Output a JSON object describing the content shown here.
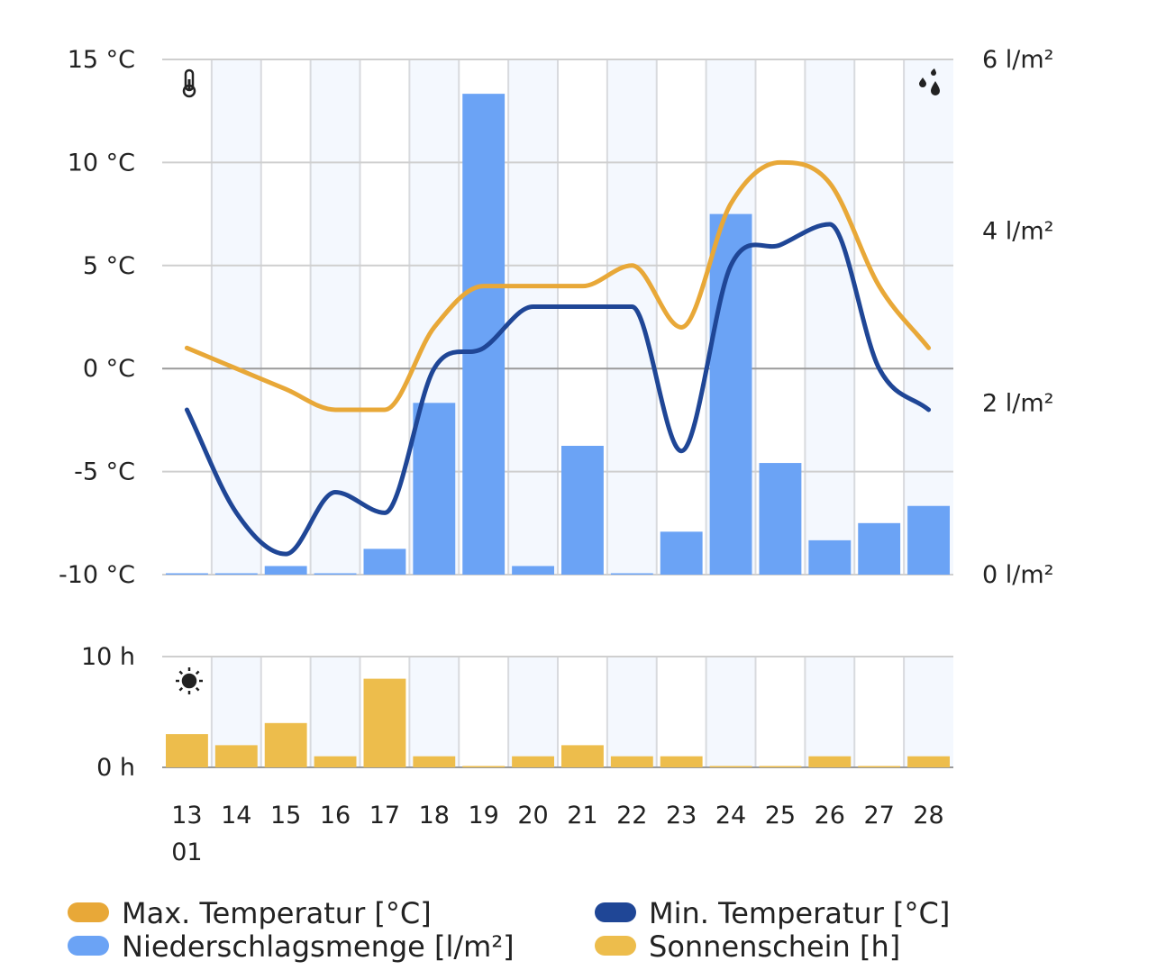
{
  "chart_data": [
    {
      "type": "bar",
      "x": [
        "13",
        "14",
        "15",
        "16",
        "17",
        "18",
        "19",
        "20",
        "21",
        "22",
        "23",
        "24",
        "25",
        "26",
        "27",
        "28"
      ],
      "x_sublabel": "01",
      "y_left": {
        "ticks": [
          "-10 °C",
          "-5 °C",
          "0 °C",
          "5 °C",
          "10 °C",
          "15 °C"
        ],
        "ylim": [
          -10,
          15
        ]
      },
      "y_right": {
        "ticks": [
          "0 l/m²",
          "2 l/m²",
          "4 l/m²",
          "6 l/m²"
        ],
        "ylim": [
          0,
          6
        ]
      },
      "series": [
        {
          "name": "Max.  Temperatur [°C]",
          "kind": "line",
          "axis": "left",
          "color": "#E8A838",
          "values": [
            1,
            0,
            -1,
            -2,
            -2,
            2,
            4,
            4,
            4,
            5,
            2,
            8,
            10,
            9,
            4,
            1
          ]
        },
        {
          "name": "Min.  Temperatur [°C]",
          "kind": "line",
          "axis": "left",
          "color": "#1F4696",
          "values": [
            -2,
            -7,
            -9,
            -6,
            -7,
            0,
            1,
            3,
            3,
            3,
            -4,
            5,
            6,
            7,
            0,
            -2
          ]
        },
        {
          "name": "Niederschlagsmenge [l/m²]",
          "kind": "bar",
          "axis": "right",
          "color": "#6BA3F5",
          "values": [
            0.0,
            0.0,
            0.1,
            0.0,
            0.3,
            2.0,
            5.6,
            0.1,
            1.5,
            0.0,
            0.5,
            4.2,
            1.3,
            0.4,
            0.6,
            0.8
          ]
        }
      ],
      "icons": {
        "left": "thermometer-icon",
        "right": "raindrops-icon"
      },
      "grid": true
    },
    {
      "type": "bar",
      "x": [
        "13",
        "14",
        "15",
        "16",
        "17",
        "18",
        "19",
        "20",
        "21",
        "22",
        "23",
        "24",
        "25",
        "26",
        "27",
        "28"
      ],
      "y_left": {
        "ticks": [
          "0 h",
          "10 h"
        ],
        "ylim": [
          0,
          10
        ]
      },
      "series": [
        {
          "name": "Sonnenschein [h]",
          "kind": "bar",
          "color": "#EDBD4C",
          "values": [
            3,
            2,
            4,
            1,
            8,
            1,
            0,
            1,
            2,
            1,
            1,
            0,
            0,
            1,
            0,
            1
          ]
        }
      ],
      "icons": {
        "left": "sun-icon"
      },
      "grid": true
    }
  ],
  "legend": [
    {
      "label": "Max.  Temperatur [°C]",
      "color": "#E8A838"
    },
    {
      "label": "Min.  Temperatur [°C]",
      "color": "#1F4696"
    },
    {
      "label": "Niederschlagsmenge [l/m²]",
      "color": "#6BA3F5"
    },
    {
      "label": "Sonnenschein [h]",
      "color": "#EDBD4C"
    }
  ]
}
